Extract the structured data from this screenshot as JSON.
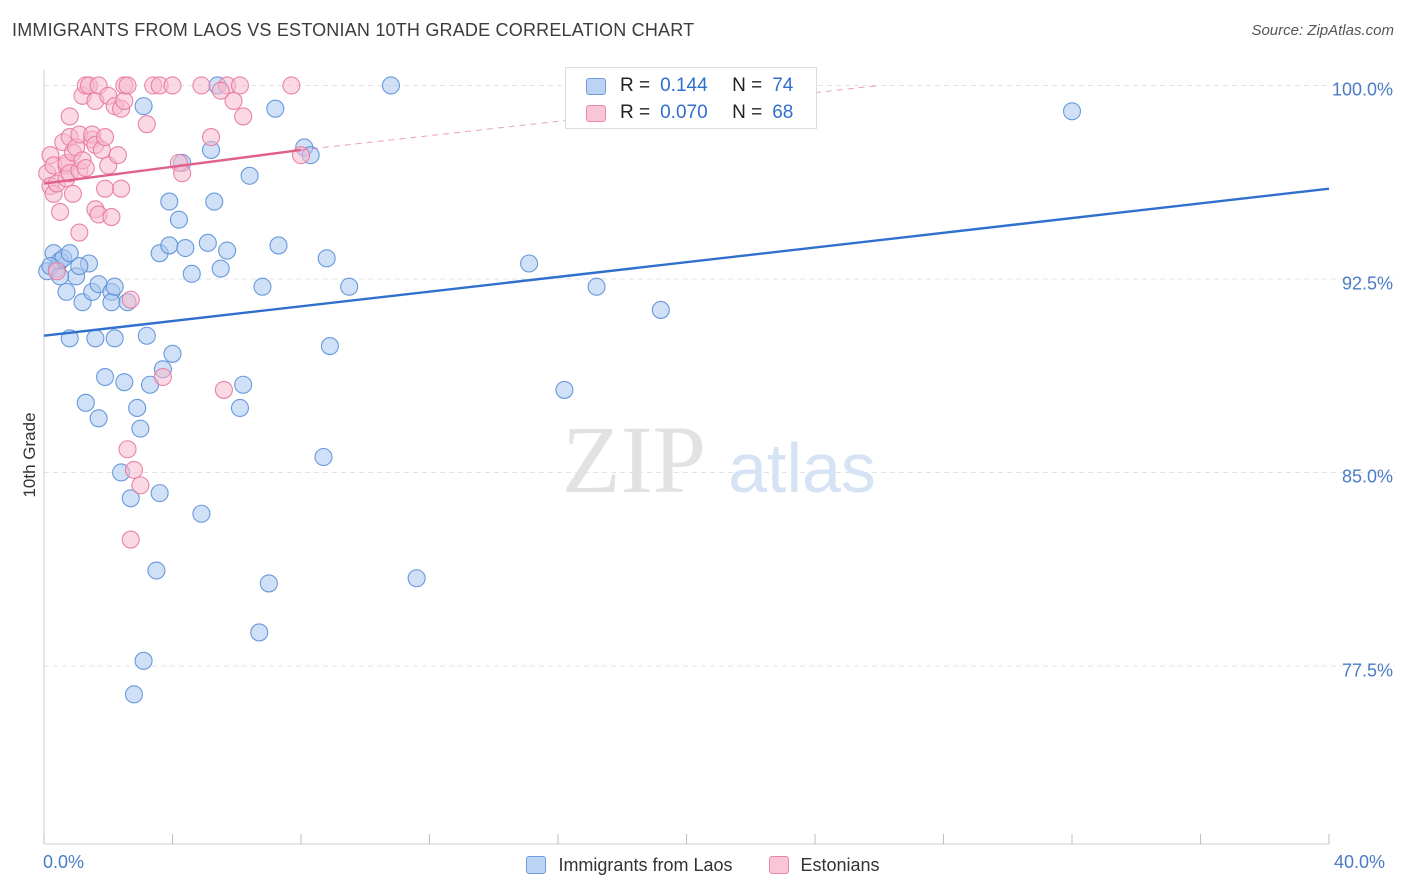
{
  "title": "IMMIGRANTS FROM LAOS VS ESTONIAN 10TH GRADE CORRELATION CHART",
  "source": "Source: ZipAtlas.com",
  "watermark": {
    "zip": "ZIP",
    "atlas": "atlas"
  },
  "colors": {
    "blue_fill": "#a9c6ef",
    "blue_stroke": "#5a8fd8",
    "blue_line": "#2f6fce",
    "pink_fill": "#f6b9cd",
    "pink_stroke": "#e8789e",
    "pink_line": "#e0608a",
    "tick_label": "#4a7cc7",
    "grid": "#e3e3e3"
  },
  "legend_top": [
    {
      "r_label": "R =",
      "r_value": "0.144",
      "n_label": "N =",
      "n_value": "74"
    },
    {
      "r_label": "R =",
      "r_value": "0.070",
      "n_label": "N =",
      "n_value": "68"
    }
  ],
  "chart_data": {
    "type": "scatter",
    "title": "IMMIGRANTS FROM LAOS VS ESTONIAN 10TH GRADE CORRELATION CHART",
    "xlabel": "",
    "ylabel": "10th Grade",
    "xlim": [
      0,
      40
    ],
    "ylim": [
      70.6,
      100.6
    ],
    "x_tick_labels": [
      "0.0%",
      "40.0%"
    ],
    "y_ticks": [
      77.5,
      85.0,
      92.5,
      100.0
    ],
    "y_tick_labels": [
      "77.5%",
      "85.0%",
      "92.5%",
      "100.0%"
    ],
    "grid": true,
    "legend_position": "bottom",
    "series": [
      {
        "name": "Immigrants from Laos",
        "color": "#a9c6ef",
        "trend": {
          "x": [
            0,
            40
          ],
          "y": [
            90.3,
            96.0
          ],
          "style": "solid"
        },
        "points": [
          [
            0.1,
            92.8
          ],
          [
            0.3,
            93.5
          ],
          [
            0.4,
            92.9
          ],
          [
            0.5,
            93.2
          ],
          [
            0.6,
            93.3
          ],
          [
            0.7,
            92.0
          ],
          [
            0.8,
            93.5
          ],
          [
            0.8,
            90.2
          ],
          [
            1.0,
            92.6
          ],
          [
            1.2,
            91.6
          ],
          [
            1.3,
            87.7
          ],
          [
            1.4,
            93.1
          ],
          [
            1.5,
            92.0
          ],
          [
            1.6,
            90.2
          ],
          [
            1.7,
            87.1
          ],
          [
            1.7,
            92.3
          ],
          [
            1.9,
            88.7
          ],
          [
            2.2,
            90.2
          ],
          [
            2.1,
            92.0
          ],
          [
            2.1,
            91.6
          ],
          [
            2.2,
            92.2
          ],
          [
            2.4,
            85.0
          ],
          [
            2.5,
            88.5
          ],
          [
            2.6,
            91.6
          ],
          [
            2.7,
            84.0
          ],
          [
            2.9,
            87.5
          ],
          [
            3.0,
            86.7
          ],
          [
            3.1,
            99.2
          ],
          [
            3.2,
            90.3
          ],
          [
            3.3,
            88.4
          ],
          [
            3.5,
            81.2
          ],
          [
            3.6,
            93.5
          ],
          [
            3.6,
            84.2
          ],
          [
            3.7,
            89.0
          ],
          [
            3.9,
            95.5
          ],
          [
            3.9,
            93.8
          ],
          [
            4.0,
            89.6
          ],
          [
            4.2,
            94.8
          ],
          [
            4.3,
            97.0
          ],
          [
            4.4,
            93.7
          ],
          [
            4.6,
            92.7
          ],
          [
            4.9,
            83.4
          ],
          [
            5.1,
            93.9
          ],
          [
            5.2,
            97.5
          ],
          [
            5.3,
            95.5
          ],
          [
            5.4,
            100.0
          ],
          [
            5.5,
            92.9
          ],
          [
            5.7,
            93.6
          ],
          [
            6.1,
            87.5
          ],
          [
            6.2,
            88.4
          ],
          [
            6.4,
            96.5
          ],
          [
            6.7,
            78.8
          ],
          [
            6.8,
            92.2
          ],
          [
            7.0,
            80.7
          ],
          [
            7.2,
            99.1
          ],
          [
            7.3,
            93.8
          ],
          [
            8.1,
            97.6
          ],
          [
            8.3,
            97.3
          ],
          [
            8.7,
            85.6
          ],
          [
            8.8,
            93.3
          ],
          [
            8.9,
            89.9
          ],
          [
            9.5,
            92.2
          ],
          [
            10.8,
            100.0
          ],
          [
            11.6,
            80.9
          ],
          [
            15.1,
            93.1
          ],
          [
            16.2,
            88.2
          ],
          [
            17.2,
            92.2
          ],
          [
            19.2,
            91.3
          ],
          [
            32.0,
            99.0
          ],
          [
            3.1,
            77.7
          ],
          [
            2.8,
            76.4
          ],
          [
            0.2,
            93.0
          ],
          [
            0.5,
            92.6
          ],
          [
            1.1,
            93.0
          ]
        ]
      },
      {
        "name": "Estonians",
        "color": "#f6b9cd",
        "trend": {
          "x": [
            0,
            8.0
          ],
          "y": [
            96.2,
            97.5
          ],
          "style": "solid",
          "dashed_extension": {
            "x": [
              8.0,
              26.0
            ],
            "y": [
              97.5,
              100.0
            ]
          }
        },
        "points": [
          [
            0.1,
            96.6
          ],
          [
            0.2,
            97.3
          ],
          [
            0.2,
            96.1
          ],
          [
            0.3,
            95.8
          ],
          [
            0.3,
            96.9
          ],
          [
            0.4,
            92.8
          ],
          [
            0.4,
            96.2
          ],
          [
            0.5,
            95.1
          ],
          [
            0.6,
            97.8
          ],
          [
            0.7,
            96.9
          ],
          [
            0.7,
            96.4
          ],
          [
            0.7,
            97.0
          ],
          [
            0.8,
            98.0
          ],
          [
            0.8,
            96.6
          ],
          [
            0.8,
            98.8
          ],
          [
            0.9,
            97.4
          ],
          [
            0.9,
            95.8
          ],
          [
            1.0,
            97.6
          ],
          [
            1.1,
            98.1
          ],
          [
            1.1,
            96.7
          ],
          [
            1.1,
            94.3
          ],
          [
            1.2,
            99.6
          ],
          [
            1.2,
            97.1
          ],
          [
            1.3,
            100.0
          ],
          [
            1.3,
            96.8
          ],
          [
            1.4,
            100.0
          ],
          [
            1.5,
            97.9
          ],
          [
            1.5,
            98.1
          ],
          [
            1.6,
            97.7
          ],
          [
            1.6,
            95.2
          ],
          [
            1.6,
            99.4
          ],
          [
            1.7,
            95.0
          ],
          [
            1.7,
            100.0
          ],
          [
            1.8,
            97.5
          ],
          [
            1.9,
            98.0
          ],
          [
            1.9,
            96.0
          ],
          [
            2.0,
            99.6
          ],
          [
            2.0,
            96.9
          ],
          [
            2.1,
            94.9
          ],
          [
            2.2,
            99.2
          ],
          [
            2.3,
            97.3
          ],
          [
            2.4,
            99.1
          ],
          [
            2.4,
            96.0
          ],
          [
            2.5,
            100.0
          ],
          [
            2.5,
            99.4
          ],
          [
            2.6,
            100.0
          ],
          [
            2.6,
            85.9
          ],
          [
            2.7,
            82.4
          ],
          [
            2.7,
            91.7
          ],
          [
            2.8,
            85.1
          ],
          [
            3.0,
            84.5
          ],
          [
            3.2,
            98.5
          ],
          [
            3.4,
            100.0
          ],
          [
            3.6,
            100.0
          ],
          [
            3.7,
            88.7
          ],
          [
            4.0,
            100.0
          ],
          [
            4.2,
            97.0
          ],
          [
            4.3,
            96.6
          ],
          [
            4.9,
            100.0
          ],
          [
            5.2,
            98.0
          ],
          [
            5.6,
            88.2
          ],
          [
            5.7,
            100.0
          ],
          [
            5.9,
            99.4
          ],
          [
            6.1,
            100.0
          ],
          [
            6.2,
            98.8
          ],
          [
            7.7,
            100.0
          ],
          [
            8.0,
            97.3
          ],
          [
            5.5,
            99.8
          ]
        ]
      }
    ]
  }
}
